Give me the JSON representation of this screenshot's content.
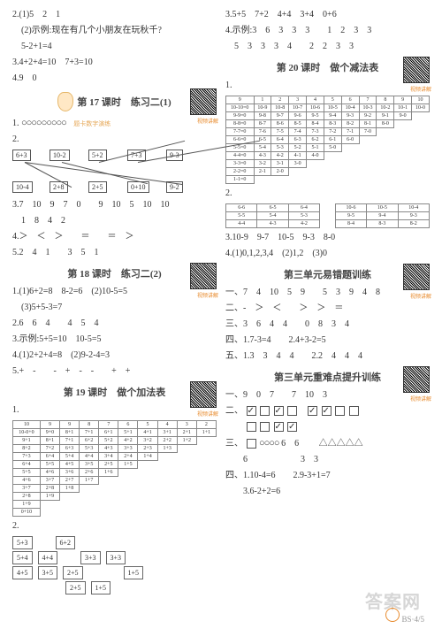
{
  "left": {
    "l1": "2.(1)5　2　1",
    "l2": "　(2)示例:现在有几个小朋友在玩秋千?",
    "l3": "　5-2+1=4",
    "l4": "3.4+2+4=10　7+3=10",
    "l5": "4.9　0",
    "s17_title": "第 17 课时　练习二(1)",
    "s17_sub1": "题卡数字演练",
    "s17_sub2": "题卡数字演练",
    "s17_1": "1.",
    "circles": "○○○○○○○○○",
    "s17_2": "2.",
    "cb": {
      "a": "6+3",
      "b": "10-2",
      "c": "5+2",
      "d": "7+3",
      "e": "9-3",
      "f": "10-4",
      "g": "2+8",
      "h": "2+5",
      "i": "0+10",
      "j": "9-2"
    },
    "s17_3": "3.7　10　9　7　0　　9　10　5　10　10",
    "s17_3b": "　1　8　4　2",
    "s17_4": "4.＞　＜　＞　　＝　　＝　＞",
    "s17_5": "5.2　4　1　　3　5　1",
    "s18_title": "第 18 课时　练习二(2)",
    "s18_1": "1.(1)6+2=8　8-2=6　(2)10-5=5",
    "s18_1b": "　(3)5+5-3=7",
    "s18_2": "2.6　6　4　　4　5　4",
    "s18_3": "3.示例:5+5=10　10-5=5",
    "s18_4": "4.(1)2+2+4=8　(2)9-2-4=3",
    "s18_5": "5.+　-　　-　+　-　-　　+　+",
    "s19_title": "第 19 课时　做个加法表",
    "add_table": [
      [
        "10",
        "9",
        "9",
        "8",
        "7",
        "6",
        "5",
        "4",
        "3",
        "2"
      ],
      [
        "10-0+0",
        "9+0",
        "8+1",
        "7+1",
        "6+1",
        "5+1",
        "4+1",
        "3+1",
        "2+1",
        "1+1"
      ],
      [
        "9+1",
        "8+1",
        "7+1",
        "6+2",
        "5+2",
        "4+2",
        "3+2",
        "2+2",
        "1+2",
        ""
      ],
      [
        "8+2",
        "7+2",
        "6+3",
        "5+3",
        "4+3",
        "3+3",
        "2+3",
        "1+3",
        "",
        ""
      ],
      [
        "7+3",
        "6+4",
        "5+4",
        "4+4",
        "3+4",
        "2+4",
        "1+4",
        "",
        "",
        ""
      ],
      [
        "6+4",
        "5+5",
        "4+5",
        "3+5",
        "2+5",
        "1+5",
        "",
        "",
        "",
        ""
      ],
      [
        "5+5",
        "4+6",
        "3+6",
        "2+6",
        "1+6",
        "",
        "",
        "",
        "",
        ""
      ],
      [
        "4+6",
        "3+7",
        "2+7",
        "1+7",
        "",
        "",
        "",
        "",
        "",
        ""
      ],
      [
        "3+7",
        "2+8",
        "1+8",
        "",
        "",
        "",
        "",
        "",
        "",
        ""
      ],
      [
        "2+8",
        "1+9",
        "",
        "",
        "",
        "",
        "",
        "",
        "",
        ""
      ],
      [
        "1+9",
        "",
        "",
        "",
        "",
        "",
        "",
        "",
        "",
        ""
      ],
      [
        "0+10",
        "",
        "",
        "",
        "",
        "",
        "",
        "",
        "",
        ""
      ]
    ],
    "boxes": [
      [
        "5+3",
        "",
        "6+2",
        ""
      ],
      [
        "5+4",
        "4+4",
        "",
        "3+3",
        "3+3"
      ],
      [
        "4+5",
        "3+5",
        "2+5",
        "",
        "",
        "1+5"
      ],
      [
        "",
        "",
        "",
        "2+5",
        "1+5"
      ]
    ]
  },
  "right": {
    "r1": "3.5+5　7+2　4+4　3+4　0+6",
    "r2": "4.示例:3　6　3　3　3　　1　2　3　3",
    "r3": "　5　3　3　3　4　　2　2　3　3",
    "s20_title": "第 20 课时　做个减法表",
    "sub_head": [
      "9",
      "1",
      "2",
      "3",
      "4",
      "5",
      "6",
      "7",
      "8",
      "9",
      "10"
    ],
    "sub_table": [
      [
        "10-10=0",
        "10-9",
        "10-8",
        "10-7",
        "10-6",
        "10-5",
        "10-4",
        "10-3",
        "10-2",
        "10-1",
        "10-0"
      ],
      [
        "9-9=0",
        "9-8",
        "9-7",
        "9-6",
        "9-5",
        "9-4",
        "9-3",
        "9-2",
        "9-1",
        "9-0",
        ""
      ],
      [
        "8-8=0",
        "8-7",
        "8-6",
        "8-5",
        "8-4",
        "8-3",
        "8-2",
        "8-1",
        "8-0",
        "",
        ""
      ],
      [
        "7-7=0",
        "7-6",
        "7-5",
        "7-4",
        "7-3",
        "7-2",
        "7-1",
        "7-0",
        "",
        "",
        ""
      ],
      [
        "6-6=0",
        "6-5",
        "6-4",
        "6-3",
        "6-2",
        "6-1",
        "6-0",
        "",
        "",
        "",
        ""
      ],
      [
        "5-5=0",
        "5-4",
        "5-3",
        "5-2",
        "5-1",
        "5-0",
        "",
        "",
        "",
        "",
        ""
      ],
      [
        "4-4=0",
        "4-3",
        "4-2",
        "4-1",
        "4-0",
        "",
        "",
        "",
        "",
        "",
        ""
      ],
      [
        "3-3=0",
        "3-2",
        "3-1",
        "3-0",
        "",
        "",
        "",
        "",
        "",
        "",
        ""
      ],
      [
        "2-2=0",
        "2-1",
        "2-0",
        "",
        "",
        "",
        "",
        "",
        "",
        "",
        ""
      ],
      [
        "1-1=0",
        "",
        "",
        "",
        "",
        "",
        "",
        "",
        "",
        "",
        ""
      ]
    ],
    "r2num": "2.",
    "box2": [
      [
        "6-6",
        "6-5",
        "6-4",
        "",
        "10-6",
        "10-5",
        "10-4"
      ],
      [
        "5-5",
        "5-4",
        "5-3",
        "",
        "9-5",
        "9-4",
        "9-3"
      ],
      [
        "4-4",
        "4-3",
        "4-2",
        "",
        "8-4",
        "8-3",
        "8-2"
      ]
    ],
    "r3a": "3.10-9　9-7　10-5　9-3　8-0",
    "r4": "4.(1)0,1,2,3,4　(2)1,2　(3)0",
    "u3a_title": "第三单元易错题训练",
    "y1": "一、7　4　10　5　9　　5　3　9　4　8",
    "y2": "二、-　＞　＜　　＞　＞　＝",
    "y3": "三、3　6　4　4　　0　8　3　4",
    "y4": "四、1.7-3=4　　2.4+3-2=5",
    "y5": "五、1.3　3　4　4　　2.2　4　4　4",
    "u3b_title": "第三单元重难点提升训练",
    "z1": "一、9　0　7　　7　10　3",
    "z2": "二、",
    "z3": "三、",
    "z3circ": "○○○○",
    "z3a": "6　6　　",
    "z3tri": "△△△△△",
    "z3b": "　　6　　　　　　3　3",
    "z4": "四、1.10-4=6　　2.9-3+1=7",
    "z5": "　　3.6-2+2=6"
  },
  "qr_label": "视频讲解",
  "footer": "BS·4/5",
  "watermark": "答案网"
}
